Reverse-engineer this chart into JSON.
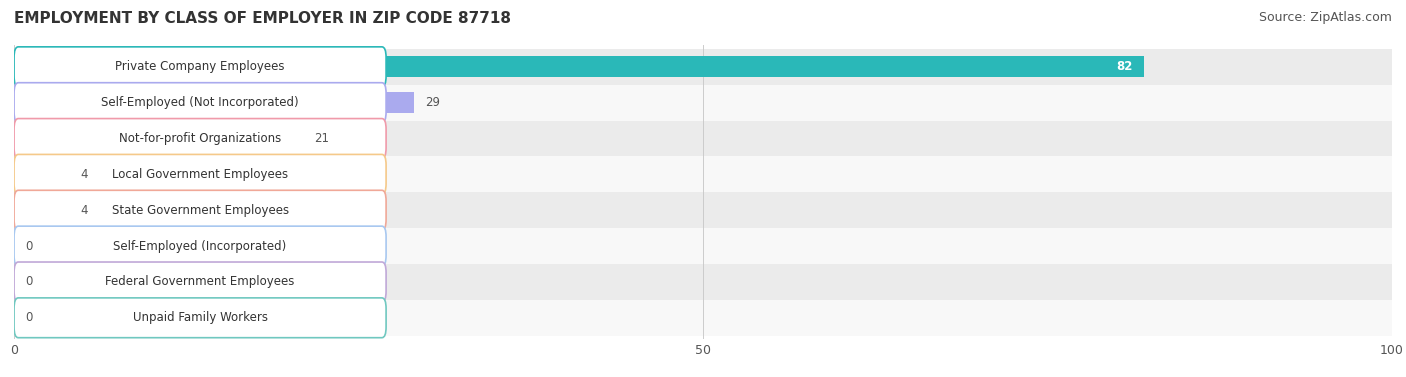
{
  "title": "EMPLOYMENT BY CLASS OF EMPLOYER IN ZIP CODE 87718",
  "source": "Source: ZipAtlas.com",
  "categories": [
    "Private Company Employees",
    "Self-Employed (Not Incorporated)",
    "Not-for-profit Organizations",
    "Local Government Employees",
    "State Government Employees",
    "Self-Employed (Incorporated)",
    "Federal Government Employees",
    "Unpaid Family Workers"
  ],
  "values": [
    82,
    29,
    21,
    4,
    4,
    0,
    0,
    0
  ],
  "bar_colors": [
    "#2ab8b8",
    "#aaaaee",
    "#f09aaa",
    "#f5c98a",
    "#f0a898",
    "#a8c8f0",
    "#c0a8d8",
    "#70c8c0"
  ],
  "row_bg_colors": [
    "#ebebeb",
    "#f8f8f8"
  ],
  "xlim": [
    0,
    100
  ],
  "xticks": [
    0,
    50,
    100
  ],
  "title_fontsize": 11,
  "source_fontsize": 9,
  "label_fontsize": 8.5,
  "value_fontsize": 8.5,
  "background_color": "#ffffff",
  "bar_height": 0.58,
  "value_label_color_inside": "#ffffff",
  "value_label_color_outside": "#555555"
}
